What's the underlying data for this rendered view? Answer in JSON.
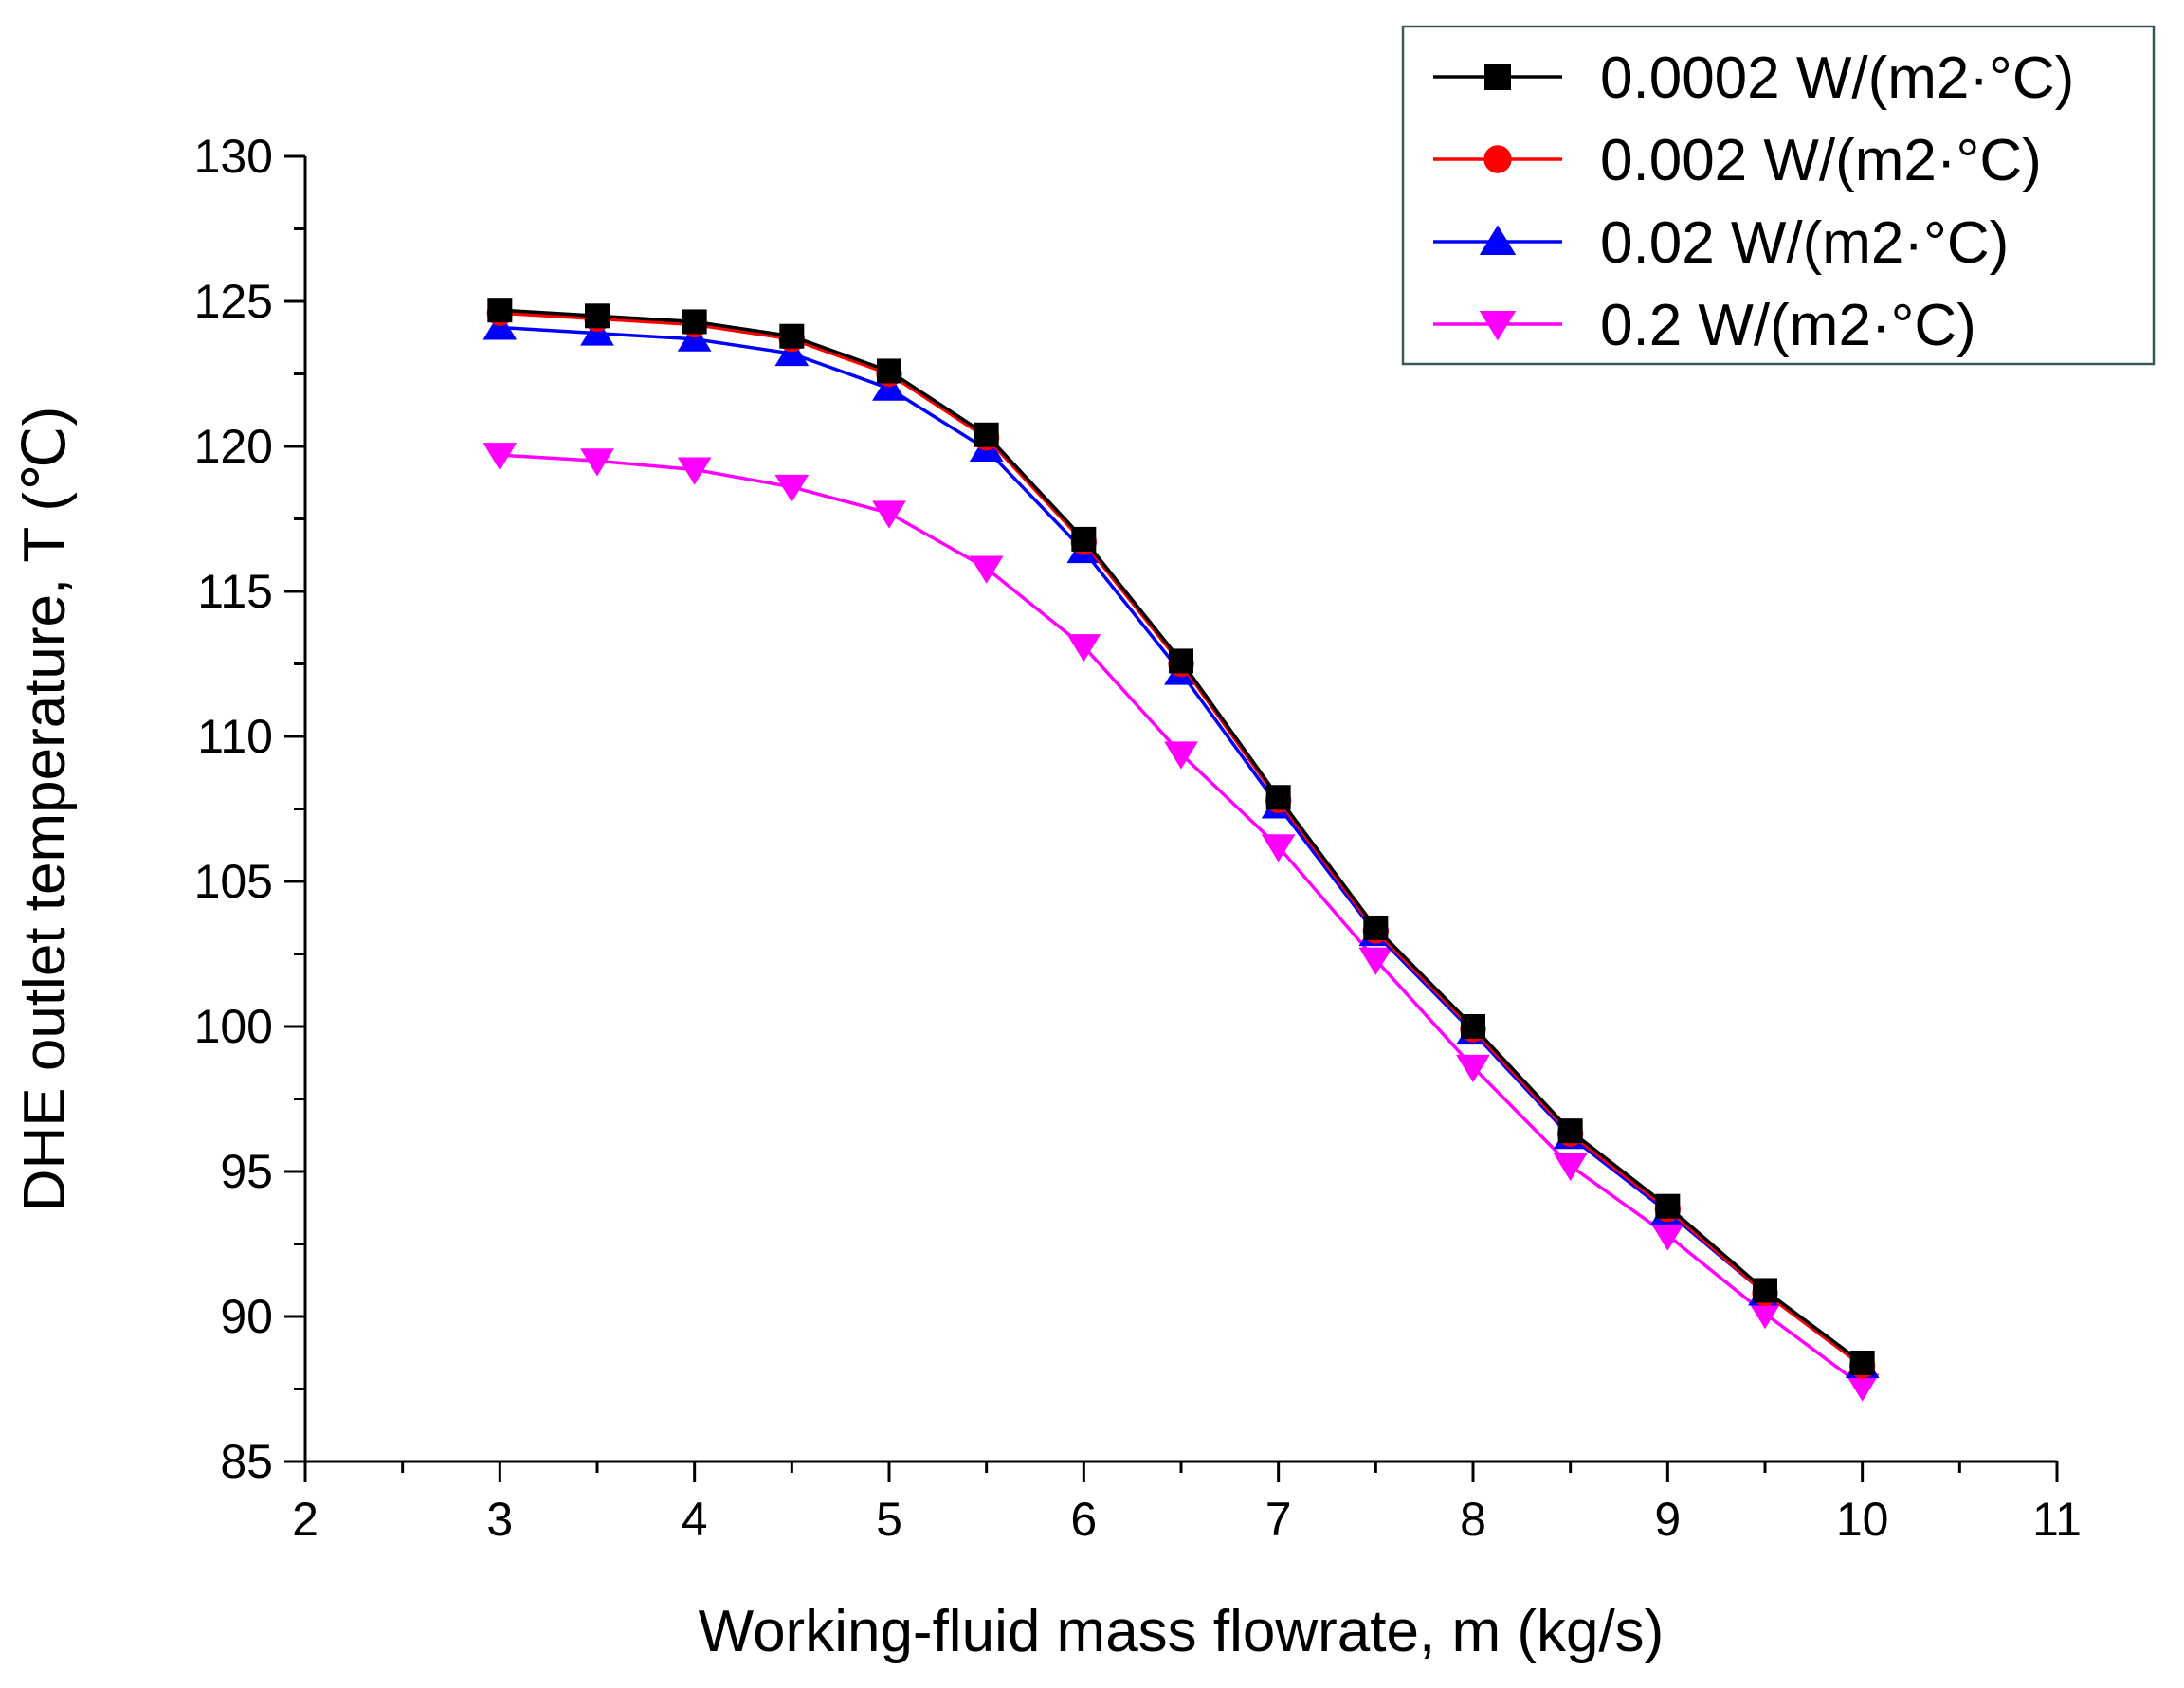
{
  "chart_data": {
    "type": "line",
    "title": "",
    "xlabel": "Working-fluid mass flowrate, m (kg/s)",
    "ylabel": "DHE outlet temperature, T (℃)",
    "xlim": [
      2,
      11
    ],
    "ylim": [
      85,
      130
    ],
    "xticks": [
      2,
      3,
      4,
      5,
      6,
      7,
      8,
      9,
      10,
      11
    ],
    "xtick_labels": [
      "2",
      "3",
      "4",
      "5",
      "6",
      "7",
      "8",
      "9",
      "10",
      "11"
    ],
    "yticks": [
      85,
      90,
      95,
      100,
      105,
      110,
      115,
      120,
      125,
      130
    ],
    "ytick_labels": [
      "85",
      "90",
      "95",
      "100",
      "105",
      "110",
      "115",
      "120",
      "125",
      "130"
    ],
    "grid": false,
    "legend_position": "top-right",
    "x": [
      3,
      3.5,
      4,
      4.5,
      5,
      5.5,
      6,
      6.5,
      7,
      7.5,
      8,
      8.5,
      9,
      9.5,
      10
    ],
    "series": [
      {
        "name": "0.0002 W/(m2·°C)",
        "color": "#000000",
        "marker": "square",
        "values": [
          124.7,
          124.5,
          124.3,
          123.8,
          122.6,
          120.4,
          116.8,
          112.6,
          107.9,
          103.4,
          100.0,
          96.4,
          93.8,
          90.9,
          88.4
        ]
      },
      {
        "name": "0.002 W/(m2·°C)",
        "color": "#ff0000",
        "marker": "circle",
        "values": [
          124.6,
          124.4,
          124.2,
          123.7,
          122.5,
          120.3,
          116.7,
          112.5,
          107.8,
          103.3,
          99.9,
          96.3,
          93.7,
          90.8,
          88.3
        ]
      },
      {
        "name": "0.02 W/(m2·°C)",
        "color": "#0000ff",
        "marker": "triangle-up",
        "values": [
          124.1,
          123.9,
          123.7,
          123.2,
          122.0,
          119.9,
          116.4,
          112.2,
          107.6,
          103.2,
          99.8,
          96.2,
          93.6,
          90.8,
          88.3
        ]
      },
      {
        "name": "0.2 W/(m2·°C)",
        "color": "#ff00ff",
        "marker": "triangle-down",
        "values": [
          119.7,
          119.5,
          119.2,
          118.6,
          117.7,
          115.8,
          113.1,
          109.4,
          106.2,
          102.3,
          98.6,
          95.2,
          92.8,
          90.1,
          87.6
        ]
      }
    ]
  }
}
